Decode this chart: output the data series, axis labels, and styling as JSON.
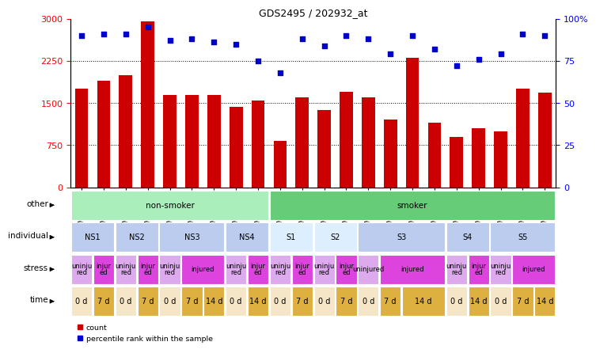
{
  "title": "GDS2495 / 202932_at",
  "samples": [
    "GSM122528",
    "GSM122531",
    "GSM122539",
    "GSM122540",
    "GSM122541",
    "GSM122542",
    "GSM122543",
    "GSM122544",
    "GSM122546",
    "GSM122527",
    "GSM122529",
    "GSM122530",
    "GSM122532",
    "GSM122533",
    "GSM122535",
    "GSM122536",
    "GSM122538",
    "GSM122534",
    "GSM122537",
    "GSM122545",
    "GSM122547",
    "GSM122548"
  ],
  "counts": [
    1750,
    1900,
    2000,
    2950,
    1650,
    1650,
    1650,
    1430,
    1540,
    830,
    1600,
    1380,
    1700,
    1600,
    1200,
    2300,
    1150,
    900,
    1050,
    1000,
    1750,
    1680
  ],
  "percentile_ranks": [
    90,
    91,
    91,
    95,
    87,
    88,
    86,
    85,
    75,
    68,
    88,
    84,
    90,
    88,
    79,
    90,
    82,
    72,
    76,
    79,
    91,
    90
  ],
  "ylim_left": [
    0,
    3000
  ],
  "ylim_right": [
    0,
    100
  ],
  "yticks_left": [
    0,
    750,
    1500,
    2250,
    3000
  ],
  "yticks_right": [
    0,
    25,
    50,
    75,
    100
  ],
  "bar_color": "#cc0000",
  "dot_color": "#0000cc",
  "other_row": [
    {
      "label": "non-smoker",
      "start": 0,
      "end": 9,
      "color": "#aaeebb"
    },
    {
      "label": "smoker",
      "start": 9,
      "end": 22,
      "color": "#66cc77"
    }
  ],
  "individual_row": [
    {
      "label": "NS1",
      "start": 0,
      "end": 2,
      "color": "#bbccee"
    },
    {
      "label": "NS2",
      "start": 2,
      "end": 4,
      "color": "#bbccee"
    },
    {
      "label": "NS3",
      "start": 4,
      "end": 7,
      "color": "#bbccee"
    },
    {
      "label": "NS4",
      "start": 7,
      "end": 9,
      "color": "#bbccee"
    },
    {
      "label": "S1",
      "start": 9,
      "end": 11,
      "color": "#ddeeff"
    },
    {
      "label": "S2",
      "start": 11,
      "end": 13,
      "color": "#ddeeff"
    },
    {
      "label": "S3",
      "start": 13,
      "end": 17,
      "color": "#bbccee"
    },
    {
      "label": "S4",
      "start": 17,
      "end": 19,
      "color": "#bbccee"
    },
    {
      "label": "S5",
      "start": 19,
      "end": 22,
      "color": "#bbccee"
    }
  ],
  "stress_row": [
    {
      "label": "uninju\nred",
      "start": 0,
      "end": 1,
      "color": "#ddaaee"
    },
    {
      "label": "injur\ned",
      "start": 1,
      "end": 2,
      "color": "#dd44dd"
    },
    {
      "label": "uninju\nred",
      "start": 2,
      "end": 3,
      "color": "#ddaaee"
    },
    {
      "label": "injur\ned",
      "start": 3,
      "end": 4,
      "color": "#dd44dd"
    },
    {
      "label": "uninju\nred",
      "start": 4,
      "end": 5,
      "color": "#ddaaee"
    },
    {
      "label": "injured",
      "start": 5,
      "end": 7,
      "color": "#dd44dd"
    },
    {
      "label": "uninju\nred",
      "start": 7,
      "end": 8,
      "color": "#ddaaee"
    },
    {
      "label": "injur\ned",
      "start": 8,
      "end": 9,
      "color": "#dd44dd"
    },
    {
      "label": "uninju\nred",
      "start": 9,
      "end": 10,
      "color": "#ddaaee"
    },
    {
      "label": "injur\ned",
      "start": 10,
      "end": 11,
      "color": "#dd44dd"
    },
    {
      "label": "uninju\nred",
      "start": 11,
      "end": 12,
      "color": "#ddaaee"
    },
    {
      "label": "injur\ned",
      "start": 12,
      "end": 13,
      "color": "#dd44dd"
    },
    {
      "label": "uninjured",
      "start": 13,
      "end": 14,
      "color": "#ddaaee"
    },
    {
      "label": "injured",
      "start": 14,
      "end": 17,
      "color": "#dd44dd"
    },
    {
      "label": "uninju\nred",
      "start": 17,
      "end": 18,
      "color": "#ddaaee"
    },
    {
      "label": "injur\ned",
      "start": 18,
      "end": 19,
      "color": "#dd44dd"
    },
    {
      "label": "uninju\nred",
      "start": 19,
      "end": 20,
      "color": "#ddaaee"
    },
    {
      "label": "injured",
      "start": 20,
      "end": 22,
      "color": "#dd44dd"
    }
  ],
  "time_row": [
    {
      "label": "0 d",
      "start": 0,
      "end": 1,
      "color": "#f5e6c8"
    },
    {
      "label": "7 d",
      "start": 1,
      "end": 2,
      "color": "#ddb040"
    },
    {
      "label": "0 d",
      "start": 2,
      "end": 3,
      "color": "#f5e6c8"
    },
    {
      "label": "7 d",
      "start": 3,
      "end": 4,
      "color": "#ddb040"
    },
    {
      "label": "0 d",
      "start": 4,
      "end": 5,
      "color": "#f5e6c8"
    },
    {
      "label": "7 d",
      "start": 5,
      "end": 6,
      "color": "#ddb040"
    },
    {
      "label": "14 d",
      "start": 6,
      "end": 7,
      "color": "#ddb040"
    },
    {
      "label": "0 d",
      "start": 7,
      "end": 8,
      "color": "#f5e6c8"
    },
    {
      "label": "14 d",
      "start": 8,
      "end": 9,
      "color": "#ddb040"
    },
    {
      "label": "0 d",
      "start": 9,
      "end": 10,
      "color": "#f5e6c8"
    },
    {
      "label": "7 d",
      "start": 10,
      "end": 11,
      "color": "#ddb040"
    },
    {
      "label": "0 d",
      "start": 11,
      "end": 12,
      "color": "#f5e6c8"
    },
    {
      "label": "7 d",
      "start": 12,
      "end": 13,
      "color": "#ddb040"
    },
    {
      "label": "0 d",
      "start": 13,
      "end": 14,
      "color": "#f5e6c8"
    },
    {
      "label": "7 d",
      "start": 14,
      "end": 15,
      "color": "#ddb040"
    },
    {
      "label": "14 d",
      "start": 15,
      "end": 17,
      "color": "#ddb040"
    },
    {
      "label": "0 d",
      "start": 17,
      "end": 18,
      "color": "#f5e6c8"
    },
    {
      "label": "14 d",
      "start": 18,
      "end": 19,
      "color": "#ddb040"
    },
    {
      "label": "0 d",
      "start": 19,
      "end": 20,
      "color": "#f5e6c8"
    },
    {
      "label": "7 d",
      "start": 20,
      "end": 21,
      "color": "#ddb040"
    },
    {
      "label": "14 d",
      "start": 21,
      "end": 22,
      "color": "#ddb040"
    }
  ],
  "row_labels": [
    "other",
    "individual",
    "stress",
    "time"
  ],
  "background_color": "#ffffff"
}
